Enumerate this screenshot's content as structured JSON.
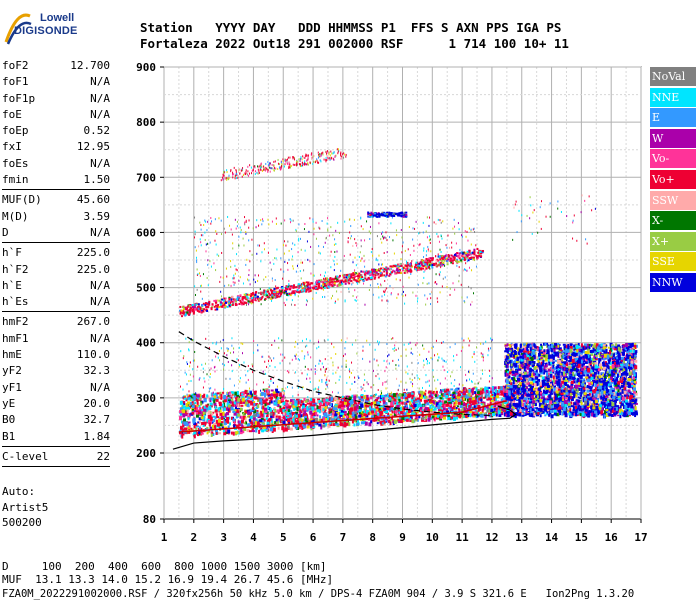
{
  "logo": {
    "line1": "Lowell",
    "line2": "DIGISONDE"
  },
  "header": {
    "row1": "Station   YYYY DAY   DDD HHMMSS P1  FFS S AXN PPS IGA PS",
    "row2": "Fortaleza 2022 Out18 291 002000 RSF      1 714 100 10+ 11"
  },
  "params": {
    "group1": [
      {
        "k": "foF2",
        "v": "12.700"
      },
      {
        "k": "foF1",
        "v": "N/A"
      },
      {
        "k": "foF1p",
        "v": "N/A"
      },
      {
        "k": "foE",
        "v": "N/A"
      },
      {
        "k": "foEp",
        "v": "0.52"
      },
      {
        "k": "fxI",
        "v": "12.95"
      },
      {
        "k": "foEs",
        "v": "N/A"
      },
      {
        "k": "fmin",
        "v": "1.50"
      }
    ],
    "group2": [
      {
        "k": "MUF(D)",
        "v": "45.60"
      },
      {
        "k": "M(D)",
        "v": "3.59"
      },
      {
        "k": "D",
        "v": "N/A"
      }
    ],
    "group3": [
      {
        "k": "h`F",
        "v": "225.0"
      },
      {
        "k": "h`F2",
        "v": "225.0"
      },
      {
        "k": "h`E",
        "v": "N/A"
      },
      {
        "k": "h`Es",
        "v": "N/A"
      }
    ],
    "group4": [
      {
        "k": "hmF2",
        "v": "267.0"
      },
      {
        "k": "hmF1",
        "v": "N/A"
      },
      {
        "k": "hmE",
        "v": "110.0"
      },
      {
        "k": "yF2",
        "v": "32.3"
      },
      {
        "k": "yF1",
        "v": "N/A"
      },
      {
        "k": "yE",
        "v": "20.0"
      },
      {
        "k": "B0",
        "v": "32.7"
      },
      {
        "k": "B1",
        "v": "1.84"
      }
    ],
    "group5": [
      {
        "k": "C-level",
        "v": "22"
      }
    ]
  },
  "auto": {
    "line1": "Auto:",
    "line2": "Artist5",
    "line3": "500200"
  },
  "legend": [
    {
      "label": "NoVal",
      "bg": "#808080",
      "fg": "#ffffff"
    },
    {
      "label": "NNE",
      "bg": "#00e5ff",
      "fg": "#ffffff"
    },
    {
      "label": "E",
      "bg": "#3399ff",
      "fg": "#ffffff"
    },
    {
      "label": "W",
      "bg": "#aa00aa",
      "fg": "#ffffff"
    },
    {
      "label": "Vo-",
      "bg": "#ff3399",
      "fg": "#ffffff"
    },
    {
      "label": "Vo+",
      "bg": "#ee0033",
      "fg": "#ffffff"
    },
    {
      "label": "SSW",
      "bg": "#ffaaaa",
      "fg": "#ffffff"
    },
    {
      "label": "X-",
      "bg": "#007700",
      "fg": "#ffffff"
    },
    {
      "label": "X+",
      "bg": "#99cc44",
      "fg": "#ffffff"
    },
    {
      "label": "SSE",
      "bg": "#e6d500",
      "fg": "#ffffff"
    },
    {
      "label": "NNW",
      "bg": "#0000dd",
      "fg": "#ffffff"
    }
  ],
  "chart_data": {
    "type": "scatter",
    "x_ticks": [
      "1",
      "2",
      "3",
      "4",
      "5",
      "6",
      "7",
      "8",
      "9",
      "10",
      "11",
      "12",
      "13",
      "14",
      "15",
      "16",
      "17"
    ],
    "y_ticks": [
      "80",
      "200",
      "300",
      "400",
      "500",
      "600",
      "700",
      "800",
      "900"
    ],
    "xlim": [
      1,
      17
    ],
    "ylim": [
      80,
      900
    ],
    "grid": true,
    "legend_placement": "right",
    "profile_line": [
      [
        1.3,
        207
      ],
      [
        2,
        218
      ],
      [
        3,
        222
      ],
      [
        4,
        225
      ],
      [
        5,
        228
      ],
      [
        6,
        232
      ],
      [
        7,
        237
      ],
      [
        8,
        241
      ],
      [
        9,
        246
      ],
      [
        10,
        251
      ],
      [
        11,
        256
      ],
      [
        12,
        261
      ],
      [
        12.6,
        263
      ],
      [
        12.8,
        270
      ],
      [
        12.6,
        278
      ],
      [
        12.2,
        285
      ]
    ],
    "muf_curve": [
      [
        1.5,
        420
      ],
      [
        2,
        403
      ],
      [
        3,
        375
      ],
      [
        4,
        350
      ],
      [
        5,
        330
      ],
      [
        6,
        312
      ],
      [
        7,
        300
      ],
      [
        8,
        288
      ],
      [
        9,
        280
      ],
      [
        10,
        274
      ],
      [
        11,
        270
      ],
      [
        12,
        268
      ]
    ]
  },
  "bottom": {
    "line1": "D     100  200  400  600  800 1000 1500 3000 [km]",
    "line2": "MUF  13.1 13.3 14.0 15.2 16.9 19.4 26.7 45.6 [MHz]",
    "line3": "FZA0M_2022291002000.RSF / 320fx256h 50 kHz 5.0 km / DPS-4 FZA0M 904 / 3.9 S 321.6 E   Ion2Png 1.3.20"
  }
}
